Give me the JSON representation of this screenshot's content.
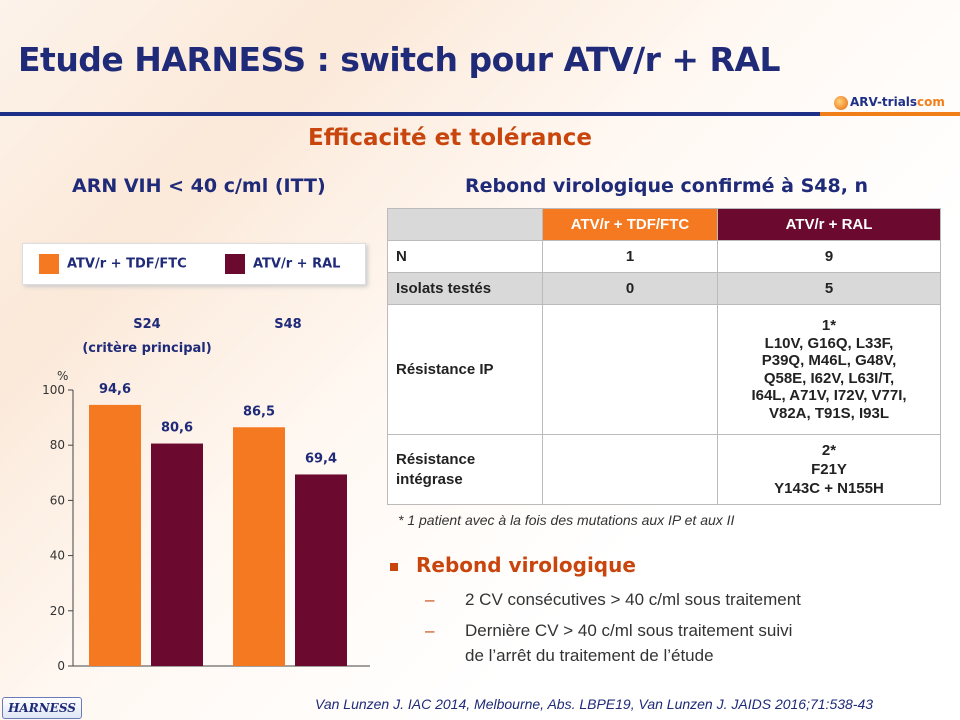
{
  "header": {
    "title": "Etude HARNESS : switch pour ATV/r + RAL",
    "logo_part1": "ARV-trials",
    "logo_part2": "com",
    "subtitle": "Efficacité et tolérance"
  },
  "colors": {
    "tdf": "#f47920",
    "ral": "#6b0a2e",
    "navy": "#1f2a78",
    "accent": "#c8460e"
  },
  "chart_data": {
    "type": "bar",
    "title": "ARN VIH < 40 c/ml (ITT)",
    "ylabel": "%",
    "ylim": [
      0,
      100
    ],
    "yticks": [
      "0",
      "20",
      "40",
      "60",
      "80",
      "100"
    ],
    "grid": false,
    "legend_position": "top",
    "categories": [
      {
        "label": "S24",
        "sublabel": "(critère principal)"
      },
      {
        "label": "S48",
        "sublabel": ""
      }
    ],
    "series": [
      {
        "name": "ATV/r + TDF/FTC",
        "values": [
          94.6,
          86.5
        ],
        "labels": [
          "94,6",
          "86,5"
        ]
      },
      {
        "name": "ATV/r + RAL",
        "values": [
          80.6,
          69.4
        ],
        "labels": [
          "80,6",
          "69,4"
        ]
      }
    ]
  },
  "table": {
    "title": "Rebond virologique confirmé à S48, n",
    "columns": [
      "ATV/r + TDF/FTC",
      "ATV/r + RAL"
    ],
    "rows": [
      {
        "label": "N",
        "tdf": "1",
        "ral": "9"
      },
      {
        "label": "Isolats testés",
        "tdf": "0",
        "ral": "5"
      },
      {
        "label": "Résistance IP",
        "tdf": "",
        "ral_lines": [
          "1*",
          "L10V, G16Q, L33F,",
          "P39Q, M46L, G48V,",
          "Q58E, I62V, L63I/T,",
          "I64L, A71V, I72V, V77I,",
          "V82A, T91S, I93L"
        ]
      },
      {
        "label_lines": [
          "Résistance",
          "intégrase"
        ],
        "tdf": "",
        "ral_lines": [
          "2*",
          "F21Y",
          "Y143C + N155H"
        ]
      }
    ],
    "footnote": "* 1 patient avec à la fois des mutations aux IP et aux II"
  },
  "bullets": {
    "heading": "Rebond virologique",
    "dash": "–",
    "items": [
      "2 CV consécutives > 40 c/ml sous traitement",
      "Dernière CV > 40 c/ml sous traitement suivi",
      "de l’arrêt du traitement de l’étude"
    ]
  },
  "footer": {
    "reference": "Van Lunzen J. IAC 2014, Melbourne, Abs. LBPE19, Van Lunzen J. JAIDS 2016;71:538-43",
    "badge": "HARNESS"
  }
}
